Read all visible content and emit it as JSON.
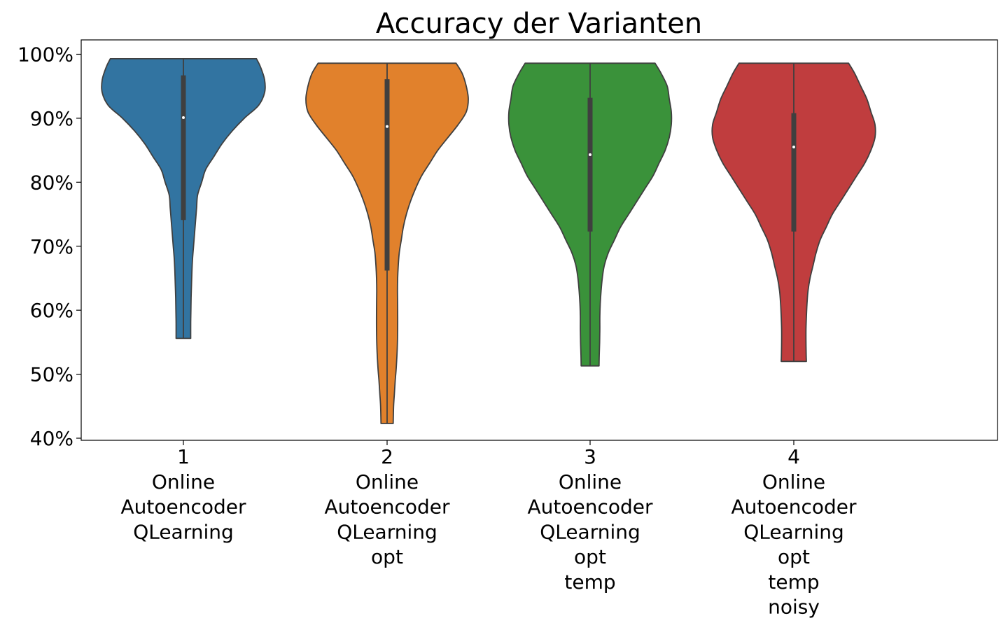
{
  "chart_data": {
    "type": "violin",
    "title": "Accuracy der Varianten",
    "xlabel": "",
    "ylabel": "",
    "ylim": [
      0.4,
      1.0
    ],
    "y_ticks": [
      {
        "value": 0.4,
        "label": "40%"
      },
      {
        "value": 0.5,
        "label": "50%"
      },
      {
        "value": 0.6,
        "label": "60%"
      },
      {
        "value": 0.7,
        "label": "70%"
      },
      {
        "value": 0.8,
        "label": "80%"
      },
      {
        "value": 0.9,
        "label": "90%"
      },
      {
        "value": 1.0,
        "label": "100%"
      }
    ],
    "grid": false,
    "categories": [
      {
        "tick": "1",
        "lines": [
          "Online",
          "Autoencoder",
          "QLearning"
        ]
      },
      {
        "tick": "2",
        "lines": [
          "Online",
          "Autoencoder",
          "QLearning",
          "opt"
        ]
      },
      {
        "tick": "3",
        "lines": [
          "Online",
          "Autoencoder",
          "QLearning",
          "opt",
          "temp"
        ]
      },
      {
        "tick": "4",
        "lines": [
          "Online",
          "Autoencoder",
          "QLearning",
          "opt",
          "temp",
          "noisy"
        ]
      }
    ],
    "violins": [
      {
        "color": "#3274a1",
        "min": 0.556,
        "max": 0.993,
        "q1": 0.741,
        "median": 0.901,
        "q3": 0.967,
        "density": [
          [
            0.993,
            0.36
          ],
          [
            0.98,
            0.38
          ],
          [
            0.96,
            0.4
          ],
          [
            0.94,
            0.4
          ],
          [
            0.92,
            0.37
          ],
          [
            0.9,
            0.3
          ],
          [
            0.88,
            0.24
          ],
          [
            0.86,
            0.19
          ],
          [
            0.84,
            0.15
          ],
          [
            0.82,
            0.11
          ],
          [
            0.8,
            0.09
          ],
          [
            0.78,
            0.07
          ],
          [
            0.76,
            0.065
          ],
          [
            0.74,
            0.06
          ],
          [
            0.72,
            0.055
          ],
          [
            0.7,
            0.05
          ],
          [
            0.68,
            0.045
          ],
          [
            0.66,
            0.042
          ],
          [
            0.64,
            0.04
          ],
          [
            0.62,
            0.038
          ],
          [
            0.6,
            0.037
          ],
          [
            0.58,
            0.036
          ],
          [
            0.556,
            0.036
          ]
        ]
      },
      {
        "color": "#e1812c",
        "min": 0.423,
        "max": 0.986,
        "q1": 0.662,
        "median": 0.887,
        "q3": 0.961,
        "density": [
          [
            0.986,
            0.34
          ],
          [
            0.97,
            0.37
          ],
          [
            0.95,
            0.39
          ],
          [
            0.93,
            0.4
          ],
          [
            0.91,
            0.39
          ],
          [
            0.89,
            0.35
          ],
          [
            0.87,
            0.3
          ],
          [
            0.85,
            0.25
          ],
          [
            0.83,
            0.21
          ],
          [
            0.81,
            0.17
          ],
          [
            0.79,
            0.14
          ],
          [
            0.77,
            0.115
          ],
          [
            0.75,
            0.095
          ],
          [
            0.73,
            0.08
          ],
          [
            0.71,
            0.07
          ],
          [
            0.69,
            0.06
          ],
          [
            0.67,
            0.055
          ],
          [
            0.65,
            0.052
          ],
          [
            0.63,
            0.051
          ],
          [
            0.6,
            0.052
          ],
          [
            0.57,
            0.052
          ],
          [
            0.54,
            0.05
          ],
          [
            0.51,
            0.045
          ],
          [
            0.49,
            0.04
          ],
          [
            0.47,
            0.036
          ],
          [
            0.45,
            0.032
          ],
          [
            0.423,
            0.03
          ]
        ]
      },
      {
        "color": "#3a923a",
        "min": 0.513,
        "max": 0.986,
        "q1": 0.723,
        "median": 0.843,
        "q3": 0.932,
        "density": [
          [
            0.986,
            0.32
          ],
          [
            0.97,
            0.35
          ],
          [
            0.95,
            0.38
          ],
          [
            0.93,
            0.39
          ],
          [
            0.91,
            0.4
          ],
          [
            0.89,
            0.4
          ],
          [
            0.87,
            0.39
          ],
          [
            0.85,
            0.37
          ],
          [
            0.83,
            0.34
          ],
          [
            0.81,
            0.31
          ],
          [
            0.79,
            0.27
          ],
          [
            0.77,
            0.23
          ],
          [
            0.75,
            0.19
          ],
          [
            0.73,
            0.15
          ],
          [
            0.71,
            0.12
          ],
          [
            0.69,
            0.09
          ],
          [
            0.67,
            0.07
          ],
          [
            0.65,
            0.06
          ],
          [
            0.63,
            0.054
          ],
          [
            0.61,
            0.05
          ],
          [
            0.59,
            0.048
          ],
          [
            0.57,
            0.048
          ],
          [
            0.55,
            0.047
          ],
          [
            0.53,
            0.045
          ],
          [
            0.513,
            0.044
          ]
        ]
      },
      {
        "color": "#c03d3e",
        "min": 0.52,
        "max": 0.986,
        "q1": 0.723,
        "median": 0.855,
        "q3": 0.908,
        "density": [
          [
            0.986,
            0.27
          ],
          [
            0.97,
            0.3
          ],
          [
            0.95,
            0.33
          ],
          [
            0.93,
            0.36
          ],
          [
            0.91,
            0.38
          ],
          [
            0.89,
            0.4
          ],
          [
            0.87,
            0.4
          ],
          [
            0.85,
            0.38
          ],
          [
            0.83,
            0.35
          ],
          [
            0.81,
            0.31
          ],
          [
            0.79,
            0.27
          ],
          [
            0.77,
            0.23
          ],
          [
            0.75,
            0.19
          ],
          [
            0.73,
            0.16
          ],
          [
            0.71,
            0.13
          ],
          [
            0.69,
            0.11
          ],
          [
            0.67,
            0.095
          ],
          [
            0.65,
            0.08
          ],
          [
            0.63,
            0.07
          ],
          [
            0.61,
            0.065
          ],
          [
            0.59,
            0.062
          ],
          [
            0.57,
            0.06
          ],
          [
            0.55,
            0.06
          ],
          [
            0.53,
            0.061
          ],
          [
            0.52,
            0.062
          ]
        ]
      }
    ]
  }
}
